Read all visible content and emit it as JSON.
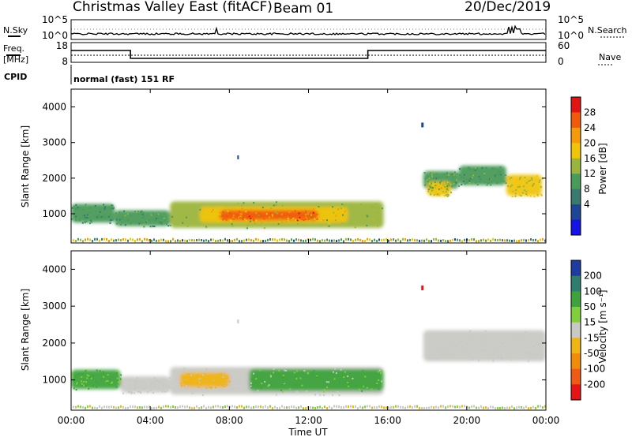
{
  "header": {
    "station": "Christmas Valley East (fitACF)",
    "beam": "Beam 01",
    "date": "20/Dec/2019"
  },
  "left_labels": {
    "nsky": "N.Sky",
    "freq": "Freq.",
    "freq_unit": "[MHz]",
    "cpid": "CPID"
  },
  "right_labels": {
    "nsearch": "N.Search",
    "nave": "Nave"
  },
  "noise_panel": {
    "left_ticks": [
      "10^5",
      "10^0"
    ],
    "right_ticks": [
      "10^5",
      "10^0"
    ]
  },
  "freq_panel": {
    "left_ticks": [
      "18",
      "8"
    ],
    "right_ticks": [
      "60",
      "0"
    ]
  },
  "cpid_text": "normal (fast) 151 RF",
  "x_axis": {
    "label": "Time UT",
    "ticks": [
      "00:00",
      "04:00",
      "08:00",
      "12:00",
      "16:00",
      "20:00",
      "00:00"
    ]
  },
  "y_axis": {
    "label": "Slant Range [km]",
    "ticks": [
      "4000",
      "3000",
      "2000",
      "1000"
    ]
  },
  "power_colorbar": {
    "label": "Power [dB]",
    "ticks": [
      "28",
      "24",
      "20",
      "16",
      "12",
      "8",
      "4"
    ],
    "colors": [
      "#e01414",
      "#f05a0a",
      "#f59a0a",
      "#f0c40a",
      "#9bb43c",
      "#4a9a5a",
      "#3a7a6e",
      "#1e4696",
      "#1414e6"
    ]
  },
  "velocity_colorbar": {
    "label": "Velocity [m s⁻¹]",
    "ticks": [
      "200",
      "100",
      "50",
      "15",
      "-15",
      "-50",
      "-100",
      "-200"
    ],
    "colors": [
      "#1e3ca0",
      "#2f7d6e",
      "#3ea33c",
      "#80d03c",
      "#c8c8c4",
      "#f0b414",
      "#f08c0a",
      "#f05a14",
      "#e61414"
    ]
  },
  "chart_data": {
    "type": "heatmap",
    "title": "Christmas Valley East (fitACF)",
    "xlabel": "Time UT",
    "ylabel": "Slant Range [km]",
    "xlim": [
      0,
      24
    ],
    "ylim": [
      180,
      4500
    ],
    "frequency_mhz": [
      {
        "t0": 0,
        "t1": 3,
        "freq": 14
      },
      {
        "t0": 3,
        "t1": 15,
        "freq": 10
      },
      {
        "t0": 15,
        "t1": 24,
        "freq": 14
      }
    ],
    "power_regions": [
      {
        "t0": 0.0,
        "t1": 2.2,
        "r0": 750,
        "r1": 1280,
        "power_db": 10
      },
      {
        "t0": 2.2,
        "t1": 5.0,
        "r0": 650,
        "r1": 1100,
        "power_db": 11
      },
      {
        "t0": 5.0,
        "t1": 15.8,
        "r0": 600,
        "r1": 1350,
        "power_db": 14
      },
      {
        "t0": 6.5,
        "t1": 14.0,
        "r0": 750,
        "r1": 1200,
        "power_db": 20
      },
      {
        "t0": 7.5,
        "t1": 12.5,
        "r0": 820,
        "r1": 1100,
        "power_db": 26
      },
      {
        "t0": 17.8,
        "t1": 19.6,
        "r0": 1700,
        "r1": 2200,
        "power_db": 12
      },
      {
        "t0": 18.0,
        "t1": 19.2,
        "r0": 1500,
        "r1": 1900,
        "power_db": 18
      },
      {
        "t0": 19.6,
        "t1": 22.0,
        "r0": 1800,
        "r1": 2350,
        "power_db": 11
      },
      {
        "t0": 22.0,
        "t1": 23.8,
        "r0": 1500,
        "r1": 2100,
        "power_db": 17
      }
    ],
    "velocity_regions": [
      {
        "t0": 0.0,
        "t1": 2.5,
        "r0": 750,
        "r1": 1280,
        "velocity": 30
      },
      {
        "t0": 2.5,
        "t1": 5.0,
        "r0": 650,
        "r1": 1100,
        "velocity": 0
      },
      {
        "t0": 5.0,
        "t1": 15.8,
        "r0": 600,
        "r1": 1350,
        "velocity": 0
      },
      {
        "t0": 5.5,
        "t1": 8.0,
        "r0": 800,
        "r1": 1200,
        "velocity": -30
      },
      {
        "t0": 9.0,
        "t1": 15.8,
        "r0": 700,
        "r1": 1300,
        "velocity": 30
      },
      {
        "t0": 17.8,
        "t1": 24.0,
        "r0": 1500,
        "r1": 2350,
        "velocity": 0
      }
    ]
  }
}
